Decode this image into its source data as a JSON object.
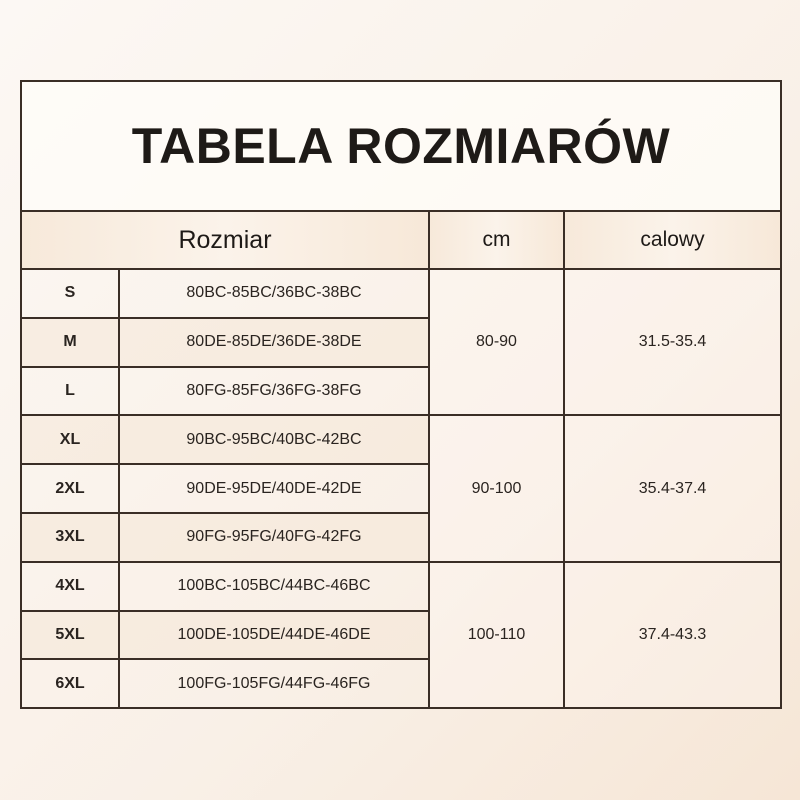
{
  "title": "TABELA ROZMIARÓW",
  "headers": {
    "size": "Rozmiar",
    "cm": "cm",
    "inch": "calowy"
  },
  "rows": [
    {
      "size": "S",
      "cups": "80BC-85BC/36BC-38BC"
    },
    {
      "size": "M",
      "cups": "80DE-85DE/36DE-38DE"
    },
    {
      "size": "L",
      "cups": "80FG-85FG/36FG-38FG"
    },
    {
      "size": "XL",
      "cups": "90BC-95BC/40BC-42BC"
    },
    {
      "size": "2XL",
      "cups": "90DE-95DE/40DE-42DE"
    },
    {
      "size": "3XL",
      "cups": "90FG-95FG/40FG-42FG"
    },
    {
      "size": "4XL",
      "cups": "100BC-105BC/44BC-46BC"
    },
    {
      "size": "5XL",
      "cups": "100DE-105DE/44DE-46DE"
    },
    {
      "size": "6XL",
      "cups": "100FG-105FG/44FG-46FG"
    }
  ],
  "groups": [
    {
      "cm": "80-90",
      "inch": "31.5-35.4"
    },
    {
      "cm": "90-100",
      "inch": "35.4-37.4"
    },
    {
      "cm": "100-110",
      "inch": "37.4-43.3"
    }
  ]
}
